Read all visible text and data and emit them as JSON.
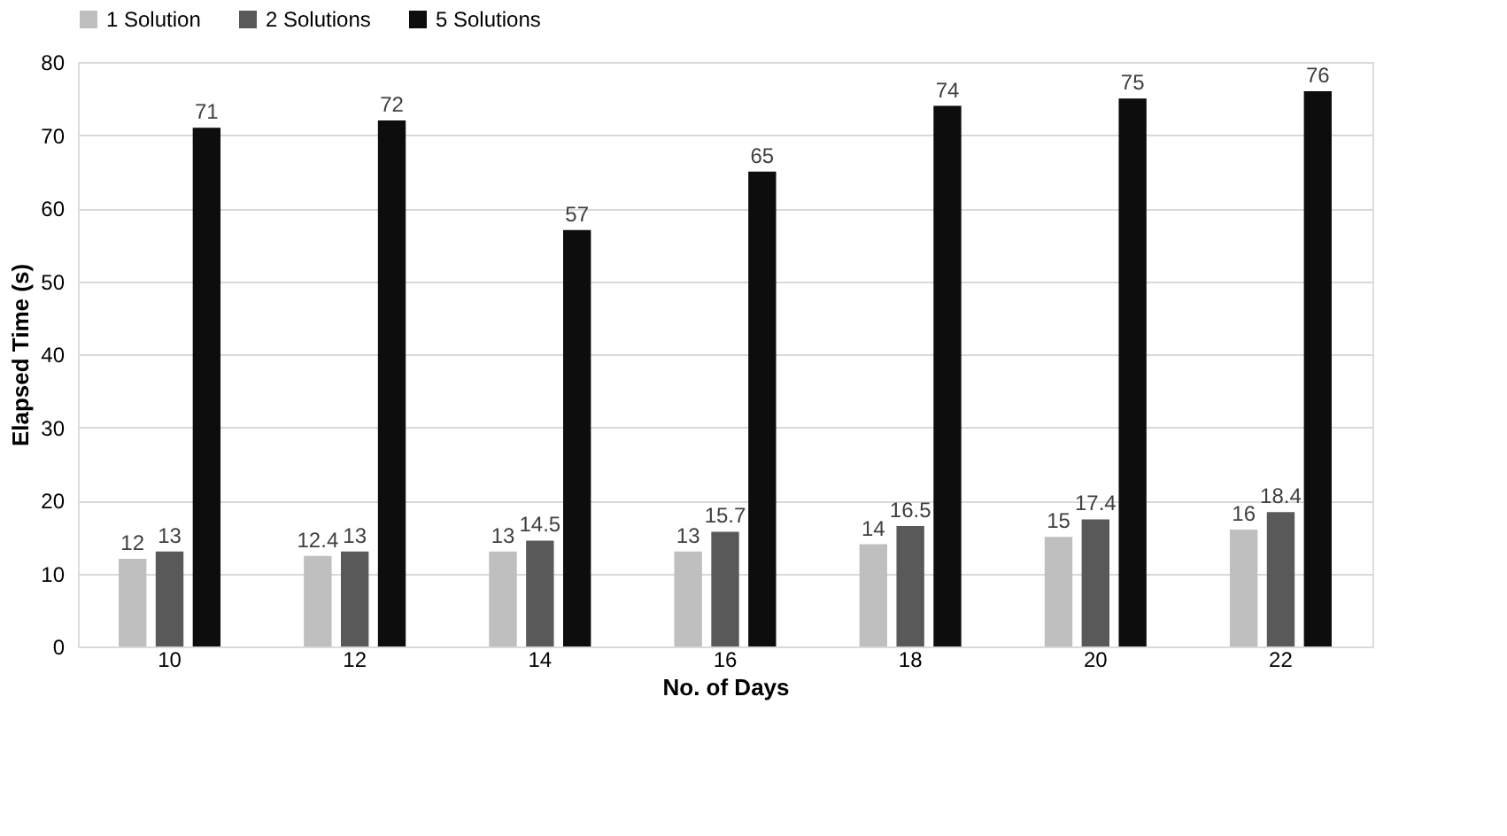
{
  "chart_data": {
    "type": "bar",
    "xlabel": "No. of Days",
    "ylabel": "Elapsed Time (s)",
    "categories": [
      "10",
      "12",
      "14",
      "16",
      "18",
      "20",
      "22"
    ],
    "series": [
      {
        "name": "1 Solution",
        "color": "#bfbfbf",
        "values": [
          12,
          12.4,
          13,
          13,
          14,
          15,
          16
        ]
      },
      {
        "name": "2 Solutions",
        "color": "#595959",
        "values": [
          13,
          13,
          14.5,
          15.7,
          16.5,
          17.4,
          18.4
        ]
      },
      {
        "name": "5 Solutions",
        "color": "#0d0d0d",
        "values": [
          71,
          72,
          57,
          65,
          74,
          75,
          76
        ]
      }
    ],
    "ylim": [
      0,
      80
    ],
    "yticks": [
      0,
      10,
      20,
      30,
      40,
      50,
      60,
      70,
      80
    ],
    "grid": "y",
    "legend": "top",
    "data_labels": true
  }
}
